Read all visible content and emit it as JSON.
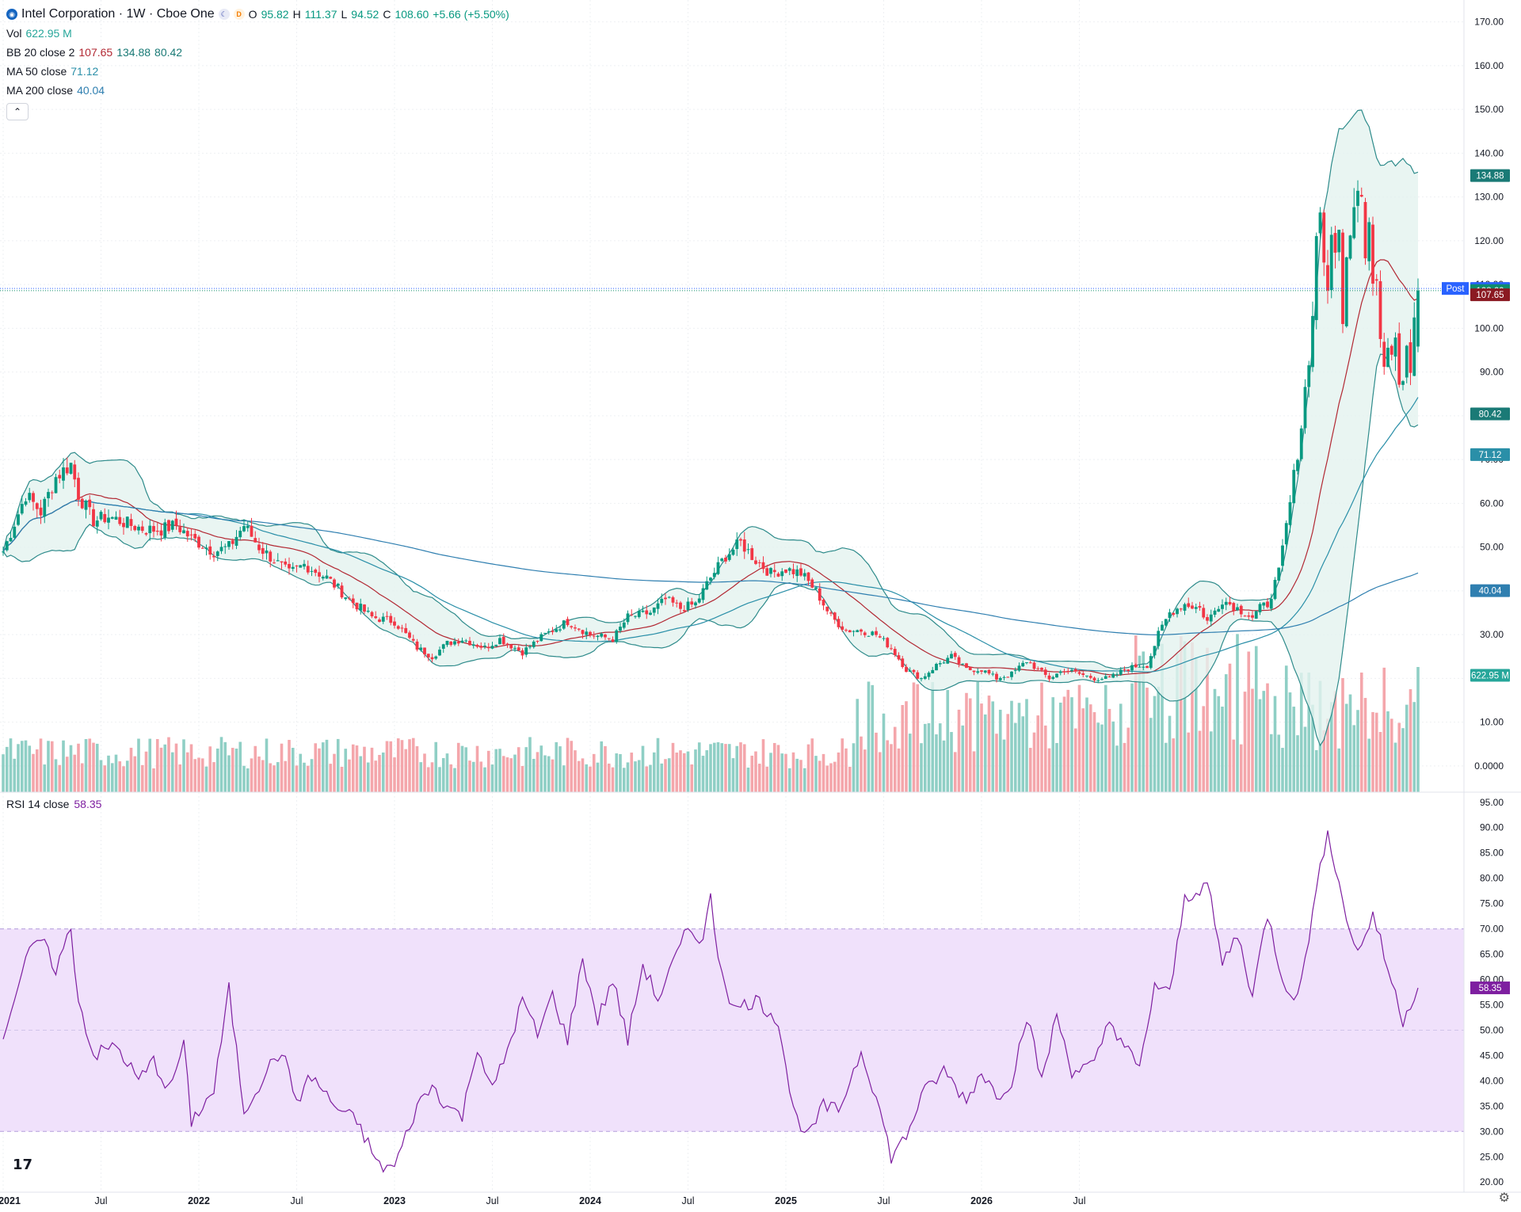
{
  "header": {
    "title": "Intel Corporation · 1W · Cboe One",
    "open_k": "O",
    "open_v": "95.82",
    "high_k": "H",
    "high_v": "111.37",
    "low_k": "L",
    "low_v": "94.52",
    "close_k": "C",
    "close_v": "108.60",
    "change": "+5.66 (+5.50%)"
  },
  "indicators": {
    "vol_label": "Vol",
    "vol_value": "622.95 M",
    "bb_label": "BB 20 close 2",
    "bb_mid": "107.65",
    "bb_upper": "134.88",
    "bb_lower": "80.42",
    "ma50_label": "MA 50 close",
    "ma50_value": "71.12",
    "ma200_label": "MA 200 close",
    "ma200_value": "40.04",
    "rsi_label": "RSI 14 close",
    "rsi_value": "58.35"
  },
  "colors": {
    "up": "#089981",
    "down": "#f23645",
    "vol_up": "#8fcfc5",
    "vol_down": "#f4a6ab",
    "bb": "#2e8b8b",
    "bb_fill": "#e3f2ef",
    "bb_mid": "#b22833",
    "ma50": "#2a8fa8",
    "ma200": "#2f7fb0",
    "rsi": "#7e1fa0",
    "rsi_band": "#f0e1fb"
  },
  "price_axis": {
    "ticks": [
      "170.00",
      "160.00",
      "150.00",
      "140.00",
      "130.00",
      "120.00",
      "110.00",
      "100.00",
      "90.00",
      "80.00",
      "70.00",
      "60.00",
      "50.00",
      "40.00",
      "30.00",
      "20.00",
      "10.00",
      "0.0000"
    ],
    "badges": [
      {
        "text": "134.88",
        "value": 134.88,
        "color": "#1a7a76"
      },
      {
        "text": "109.09",
        "value": 109.09,
        "color": "#2962ff",
        "tag": "Post"
      },
      {
        "text": "108.60",
        "value": 108.6,
        "color": "#0f8c6e"
      },
      {
        "text": "107.65",
        "value": 107.65,
        "color": "#8b1a22"
      },
      {
        "text": "80.42",
        "value": 80.42,
        "color": "#1a7a76"
      },
      {
        "text": "71.12",
        "value": 71.12,
        "color": "#2a8fa8"
      },
      {
        "text": "40.04",
        "value": 40.04,
        "color": "#2f7fb0"
      },
      {
        "text": "622.95 M",
        "value": 20.7,
        "color": "#26a69a"
      }
    ]
  },
  "rsi_axis": {
    "ticks": [
      "95.00",
      "90.00",
      "85.00",
      "80.00",
      "75.00",
      "70.00",
      "65.00",
      "60.00",
      "55.00",
      "50.00",
      "45.00",
      "40.00",
      "35.00",
      "30.00",
      "25.00",
      "20.00"
    ],
    "badge": "58.35"
  },
  "time_axis": {
    "labels": [
      "2021",
      "Jul",
      "2022",
      "Jul",
      "2023",
      "Jul",
      "2024",
      "Jul",
      "2025",
      "Jul",
      "2026",
      "Jul"
    ]
  },
  "chart_data": {
    "type": "candlestick",
    "title": "Intel Corporation · 1W · Cboe One",
    "price_range": [
      -6,
      175
    ],
    "rsi_range": [
      18,
      97
    ],
    "rsi_bands": [
      70,
      30
    ],
    "price_path": [
      [
        0,
        49
      ],
      [
        6,
        62
      ],
      [
        10,
        58
      ],
      [
        14,
        66
      ],
      [
        18,
        69
      ],
      [
        20,
        62
      ],
      [
        24,
        56
      ],
      [
        28,
        57
      ],
      [
        34,
        55
      ],
      [
        38,
        54
      ],
      [
        42,
        54
      ],
      [
        46,
        55
      ],
      [
        50,
        52
      ],
      [
        56,
        49
      ],
      [
        60,
        50
      ],
      [
        64,
        55
      ],
      [
        68,
        50
      ],
      [
        72,
        47
      ],
      [
        76,
        44
      ],
      [
        80,
        46
      ],
      [
        86,
        43
      ],
      [
        92,
        38
      ],
      [
        98,
        34
      ],
      [
        104,
        33
      ],
      [
        110,
        27
      ],
      [
        114,
        25
      ],
      [
        118,
        28
      ],
      [
        122,
        29
      ],
      [
        128,
        27
      ],
      [
        132,
        29
      ],
      [
        138,
        26
      ],
      [
        144,
        30
      ],
      [
        150,
        33
      ],
      [
        156,
        30
      ],
      [
        162,
        29
      ],
      [
        166,
        34
      ],
      [
        172,
        35
      ],
      [
        176,
        38
      ],
      [
        180,
        36
      ],
      [
        184,
        37
      ],
      [
        188,
        43
      ],
      [
        192,
        48
      ],
      [
        196,
        51
      ],
      [
        200,
        47
      ],
      [
        204,
        44
      ],
      [
        208,
        45
      ],
      [
        212,
        44
      ],
      [
        216,
        40
      ],
      [
        220,
        34
      ],
      [
        224,
        31
      ],
      [
        228,
        31
      ],
      [
        232,
        30
      ],
      [
        236,
        27
      ],
      [
        240,
        22
      ],
      [
        244,
        20
      ],
      [
        248,
        23
      ],
      [
        252,
        25
      ],
      [
        256,
        22
      ],
      [
        260,
        22
      ],
      [
        264,
        20
      ],
      [
        268,
        21
      ],
      [
        272,
        24
      ],
      [
        278,
        20
      ],
      [
        282,
        22
      ],
      [
        286,
        21
      ],
      [
        290,
        20
      ],
      [
        294,
        20
      ],
      [
        298,
        22
      ],
      [
        302,
        23
      ],
      [
        304,
        23
      ],
      [
        307,
        30
      ],
      [
        310,
        35
      ],
      [
        314,
        37
      ],
      [
        318,
        36
      ],
      [
        320,
        33
      ],
      [
        324,
        38
      ],
      [
        328,
        36
      ],
      [
        332,
        34
      ],
      [
        334,
        36
      ],
      [
        336,
        37
      ],
      [
        339,
        44
      ],
      [
        342,
        60
      ],
      [
        345,
        78
      ],
      [
        347,
        94
      ],
      [
        348,
        102
      ],
      [
        349,
        122
      ],
      [
        350,
        128
      ],
      [
        351,
        112
      ],
      [
        352,
        108
      ],
      [
        353,
        124
      ],
      [
        354,
        116
      ],
      [
        355,
        121
      ],
      [
        356,
        104
      ],
      [
        357,
        118
      ],
      [
        358,
        124
      ],
      [
        359,
        129
      ],
      [
        360,
        135
      ],
      [
        361,
        132
      ],
      [
        362,
        116
      ],
      [
        363,
        124
      ],
      [
        364,
        110
      ],
      [
        365,
        108
      ],
      [
        366,
        100
      ],
      [
        367,
        92
      ],
      [
        368,
        98
      ],
      [
        369,
        96
      ],
      [
        370,
        100
      ],
      [
        371,
        88
      ],
      [
        372,
        90
      ],
      [
        373,
        97
      ],
      [
        374,
        92
      ],
      [
        375,
        103
      ],
      [
        376,
        108.6
      ]
    ],
    "rsi_path": [
      [
        0,
        49
      ],
      [
        6,
        64
      ],
      [
        10,
        68
      ],
      [
        14,
        62
      ],
      [
        18,
        70
      ],
      [
        20,
        56
      ],
      [
        24,
        45
      ],
      [
        30,
        47
      ],
      [
        36,
        40
      ],
      [
        40,
        44
      ],
      [
        44,
        38
      ],
      [
        48,
        47
      ],
      [
        50,
        32
      ],
      [
        56,
        38
      ],
      [
        60,
        58
      ],
      [
        64,
        34
      ],
      [
        70,
        42
      ],
      [
        74,
        46
      ],
      [
        78,
        36
      ],
      [
        82,
        41
      ],
      [
        88,
        35
      ],
      [
        94,
        32
      ],
      [
        100,
        23
      ],
      [
        104,
        23
      ],
      [
        110,
        35
      ],
      [
        114,
        39
      ],
      [
        118,
        35
      ],
      [
        122,
        33
      ],
      [
        126,
        47
      ],
      [
        130,
        38
      ],
      [
        134,
        46
      ],
      [
        138,
        56
      ],
      [
        142,
        49
      ],
      [
        146,
        57
      ],
      [
        150,
        48
      ],
      [
        154,
        64
      ],
      [
        158,
        52
      ],
      [
        162,
        60
      ],
      [
        166,
        48
      ],
      [
        170,
        63
      ],
      [
        174,
        56
      ],
      [
        178,
        63
      ],
      [
        182,
        70
      ],
      [
        186,
        68
      ],
      [
        188,
        76
      ],
      [
        190,
        65
      ],
      [
        194,
        54
      ],
      [
        200,
        56
      ],
      [
        206,
        52
      ],
      [
        210,
        34
      ],
      [
        214,
        29
      ],
      [
        218,
        35
      ],
      [
        222,
        34
      ],
      [
        228,
        46
      ],
      [
        232,
        37
      ],
      [
        236,
        25
      ],
      [
        240,
        29
      ],
      [
        244,
        37
      ],
      [
        250,
        42
      ],
      [
        256,
        36
      ],
      [
        260,
        42
      ],
      [
        264,
        37
      ],
      [
        268,
        40
      ],
      [
        272,
        53
      ],
      [
        276,
        40
      ],
      [
        280,
        53
      ],
      [
        284,
        42
      ],
      [
        290,
        43
      ],
      [
        294,
        52
      ],
      [
        298,
        47
      ],
      [
        302,
        42
      ],
      [
        306,
        59
      ],
      [
        310,
        57
      ],
      [
        314,
        76
      ],
      [
        320,
        79
      ],
      [
        324,
        63
      ],
      [
        328,
        69
      ],
      [
        332,
        57
      ],
      [
        336,
        73
      ],
      [
        340,
        60
      ],
      [
        344,
        56
      ],
      [
        348,
        73
      ],
      [
        352,
        90
      ],
      [
        356,
        75
      ],
      [
        360,
        65
      ],
      [
        364,
        73
      ],
      [
        368,
        62
      ],
      [
        372,
        52
      ],
      [
        376,
        58.35
      ]
    ],
    "rsi_last": 58.35,
    "bb_last": {
      "upper": 134.88,
      "middle": 107.65,
      "lower": 80.42
    },
    "ma50_last": 71.12,
    "ma200_last": 40.04,
    "volume_last": "622.95 M",
    "n_weeks": 377,
    "x_labels": [
      "2021",
      "Jul",
      "2022",
      "Jul",
      "2023",
      "Jul",
      "2024",
      "Jul",
      "2025",
      "Jul",
      "2026",
      "Jul"
    ]
  }
}
